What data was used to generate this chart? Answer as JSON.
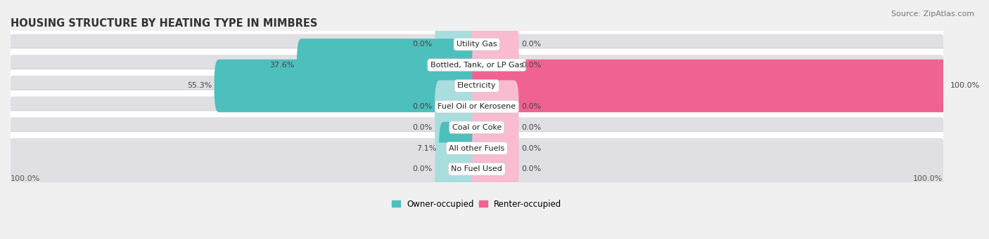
{
  "title": "HOUSING STRUCTURE BY HEATING TYPE IN MIMBRES",
  "source": "Source: ZipAtlas.com",
  "categories": [
    "Utility Gas",
    "Bottled, Tank, or LP Gas",
    "Electricity",
    "Fuel Oil or Kerosene",
    "Coal or Coke",
    "All other Fuels",
    "No Fuel Used"
  ],
  "owner_values": [
    0.0,
    37.6,
    55.3,
    0.0,
    0.0,
    7.1,
    0.0
  ],
  "renter_values": [
    0.0,
    0.0,
    100.0,
    0.0,
    0.0,
    0.0,
    0.0
  ],
  "owner_color": "#4DBFBC",
  "owner_color_light": "#A8DEDD",
  "renter_color": "#F06292",
  "renter_color_light": "#F9BBCF",
  "owner_label": "Owner-occupied",
  "renter_label": "Renter-occupied",
  "background_color": "#f0f0f0",
  "bar_bg_color": "#e0e0e4",
  "bar_bg_border": "#d0d0d6",
  "axis_label_left": "100.0%",
  "axis_label_right": "100.0%",
  "title_fontsize": 10.5,
  "source_fontsize": 8,
  "label_fontsize": 8,
  "category_fontsize": 8,
  "value_fontsize": 8,
  "max_value": 100.0,
  "stub_value": 8.0
}
